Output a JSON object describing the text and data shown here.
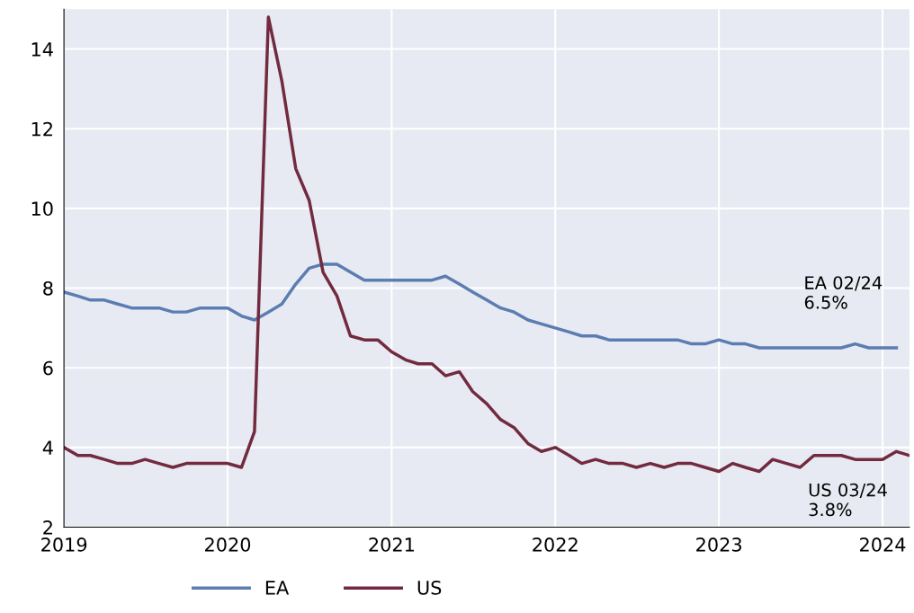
{
  "chart_data": {
    "type": "line",
    "x": [
      "2019-01",
      "2019-02",
      "2019-03",
      "2019-04",
      "2019-05",
      "2019-06",
      "2019-07",
      "2019-08",
      "2019-09",
      "2019-10",
      "2019-11",
      "2019-12",
      "2020-01",
      "2020-02",
      "2020-03",
      "2020-04",
      "2020-05",
      "2020-06",
      "2020-07",
      "2020-08",
      "2020-09",
      "2020-10",
      "2020-11",
      "2020-12",
      "2021-01",
      "2021-02",
      "2021-03",
      "2021-04",
      "2021-05",
      "2021-06",
      "2021-07",
      "2021-08",
      "2021-09",
      "2021-10",
      "2021-11",
      "2021-12",
      "2022-01",
      "2022-02",
      "2022-03",
      "2022-04",
      "2022-05",
      "2022-06",
      "2022-07",
      "2022-08",
      "2022-09",
      "2022-10",
      "2022-11",
      "2022-12",
      "2023-01",
      "2023-02",
      "2023-03",
      "2023-04",
      "2023-05",
      "2023-06",
      "2023-07",
      "2023-08",
      "2023-09",
      "2023-10",
      "2023-11",
      "2023-12",
      "2024-01",
      "2024-02",
      "2024-03"
    ],
    "series": [
      {
        "name": "EA",
        "color": "#5b7db1",
        "values": [
          7.9,
          7.8,
          7.7,
          7.7,
          7.6,
          7.5,
          7.5,
          7.5,
          7.4,
          7.4,
          7.5,
          7.5,
          7.5,
          7.3,
          7.2,
          7.4,
          7.6,
          8.1,
          8.5,
          8.6,
          8.6,
          8.4,
          8.2,
          8.2,
          8.2,
          8.2,
          8.2,
          8.2,
          8.3,
          8.1,
          7.9,
          7.7,
          7.5,
          7.4,
          7.2,
          7.1,
          7.0,
          6.9,
          6.8,
          6.8,
          6.7,
          6.7,
          6.7,
          6.7,
          6.7,
          6.7,
          6.6,
          6.6,
          6.7,
          6.6,
          6.6,
          6.5,
          6.5,
          6.5,
          6.5,
          6.5,
          6.5,
          6.5,
          6.6,
          6.5,
          6.5,
          6.5,
          null
        ]
      },
      {
        "name": "US",
        "color": "#722a3f",
        "values": [
          4.0,
          3.8,
          3.8,
          3.7,
          3.6,
          3.6,
          3.7,
          3.6,
          3.5,
          3.6,
          3.6,
          3.6,
          3.6,
          3.5,
          4.4,
          14.8,
          13.2,
          11.0,
          10.2,
          8.4,
          7.8,
          6.8,
          6.7,
          6.7,
          6.4,
          6.2,
          6.1,
          6.1,
          5.8,
          5.9,
          5.4,
          5.1,
          4.7,
          4.5,
          4.1,
          3.9,
          4.0,
          3.8,
          3.6,
          3.7,
          3.6,
          3.6,
          3.5,
          3.6,
          3.5,
          3.6,
          3.6,
          3.5,
          3.4,
          3.6,
          3.5,
          3.4,
          3.7,
          3.6,
          3.5,
          3.8,
          3.8,
          3.8,
          3.7,
          3.7,
          3.7,
          3.9,
          3.8
        ]
      }
    ],
    "xlim": [
      "2019-01",
      "2024-03"
    ],
    "xticks": [
      {
        "value": "2019-01",
        "label": "2019"
      },
      {
        "value": "2020-01",
        "label": "2020"
      },
      {
        "value": "2021-01",
        "label": "2021"
      },
      {
        "value": "2022-01",
        "label": "2022"
      },
      {
        "value": "2023-01",
        "label": "2023"
      },
      {
        "value": "2024-01",
        "label": "2024"
      }
    ],
    "ylim": [
      2,
      15
    ],
    "yticks": [
      2,
      4,
      6,
      8,
      10,
      12,
      14
    ],
    "grid": true,
    "legend": "bottom",
    "line_style": "solid",
    "annotations": [
      "EA 02/24\n6.5%",
      "US 03/24\n3.8%"
    ]
  }
}
